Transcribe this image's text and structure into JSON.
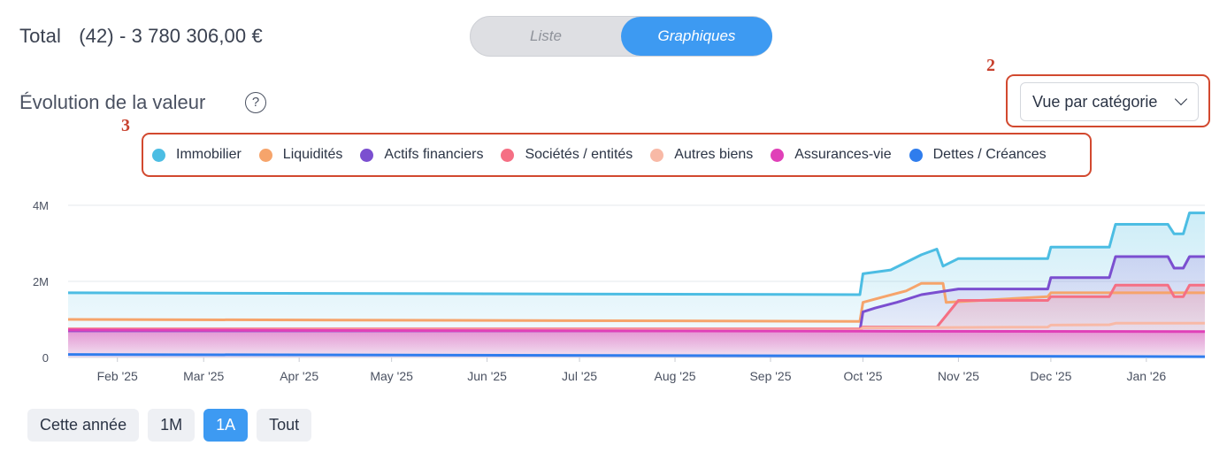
{
  "header": {
    "total_label": "Total",
    "total_value": "(42) - 3 780 306,00 €"
  },
  "view_toggle": {
    "options": [
      "Liste",
      "Graphiques"
    ],
    "selected": "Graphiques"
  },
  "section": {
    "title": "Évolution de la valeur",
    "help_glyph": "?"
  },
  "view_select": {
    "value": "Vue par catégorie"
  },
  "annotations": {
    "label_2": "2",
    "label_3": "3",
    "color": "#d2492f"
  },
  "ranges": {
    "items": [
      "Cette année",
      "1M",
      "1A",
      "Tout"
    ],
    "active": "1A"
  },
  "chart_data": {
    "type": "area",
    "title": "",
    "xlabel": "",
    "ylabel": "",
    "ylim": [
      0,
      4000000
    ],
    "y_ticks": [
      {
        "value": 0,
        "label": "0"
      },
      {
        "value": 2000000,
        "label": "2M"
      },
      {
        "value": 4000000,
        "label": "4M"
      }
    ],
    "x_domain": [
      "2025-01-16",
      "2026-01-20"
    ],
    "x_ticks": [
      {
        "date": "2025-02-01",
        "label": "Feb '25"
      },
      {
        "date": "2025-03-01",
        "label": "Mar '25"
      },
      {
        "date": "2025-04-01",
        "label": "Apr '25"
      },
      {
        "date": "2025-05-01",
        "label": "May '25"
      },
      {
        "date": "2025-06-01",
        "label": "Jun '25"
      },
      {
        "date": "2025-07-01",
        "label": "Jul '25"
      },
      {
        "date": "2025-08-01",
        "label": "Aug '25"
      },
      {
        "date": "2025-09-01",
        "label": "Sep '25"
      },
      {
        "date": "2025-10-01",
        "label": "Oct '25"
      },
      {
        "date": "2025-11-01",
        "label": "Nov '25"
      },
      {
        "date": "2025-12-01",
        "label": "Dec '25"
      },
      {
        "date": "2026-01-01",
        "label": "Jan '26"
      }
    ],
    "grid": true,
    "legend": "top-center",
    "series": [
      {
        "name": "Immobilier",
        "color": "#4cbde3",
        "fill": "#4cbde3",
        "fill_opacity": 0.28,
        "points": [
          [
            "2025-01-16",
            1700000
          ],
          [
            "2025-09-30",
            1650000
          ],
          [
            "2025-10-01",
            2200000
          ],
          [
            "2025-10-10",
            2300000
          ],
          [
            "2025-10-15",
            2500000
          ],
          [
            "2025-10-20",
            2700000
          ],
          [
            "2025-10-25",
            2850000
          ],
          [
            "2025-10-27",
            2400000
          ],
          [
            "2025-11-01",
            2600000
          ],
          [
            "2025-11-30",
            2600000
          ],
          [
            "2025-12-01",
            2900000
          ],
          [
            "2025-12-20",
            2900000
          ],
          [
            "2025-12-22",
            3500000
          ],
          [
            "2026-01-08",
            3500000
          ],
          [
            "2026-01-10",
            3250000
          ],
          [
            "2026-01-13",
            3250000
          ],
          [
            "2026-01-15",
            3800000
          ],
          [
            "2026-01-20",
            3800000
          ]
        ]
      },
      {
        "name": "Liquidités",
        "color": "#f6a46b",
        "fill": "#f6a46b",
        "fill_opacity": 0.0,
        "points": [
          [
            "2025-01-16",
            1000000
          ],
          [
            "2025-09-30",
            950000
          ],
          [
            "2025-10-01",
            1450000
          ],
          [
            "2025-10-08",
            1600000
          ],
          [
            "2025-10-15",
            1750000
          ],
          [
            "2025-10-20",
            1950000
          ],
          [
            "2025-10-27",
            1950000
          ],
          [
            "2025-10-28",
            1450000
          ],
          [
            "2025-11-30",
            1600000
          ],
          [
            "2025-12-01",
            1700000
          ],
          [
            "2026-01-20",
            1700000
          ]
        ]
      },
      {
        "name": "Actifs financiers",
        "color": "#7b4fd0",
        "fill": "#8e6ad9",
        "fill_opacity": 0.22,
        "points": [
          [
            "2025-01-16",
            700000
          ],
          [
            "2025-09-30",
            700000
          ],
          [
            "2025-10-01",
            1200000
          ],
          [
            "2025-10-05",
            1300000
          ],
          [
            "2025-10-12",
            1450000
          ],
          [
            "2025-10-20",
            1650000
          ],
          [
            "2025-11-01",
            1800000
          ],
          [
            "2025-11-30",
            1800000
          ],
          [
            "2025-12-01",
            2100000
          ],
          [
            "2025-12-20",
            2100000
          ],
          [
            "2025-12-22",
            2650000
          ],
          [
            "2026-01-08",
            2650000
          ],
          [
            "2026-01-10",
            2350000
          ],
          [
            "2026-01-13",
            2350000
          ],
          [
            "2026-01-15",
            2650000
          ],
          [
            "2026-01-20",
            2650000
          ]
        ]
      },
      {
        "name": "Sociétés / entités",
        "color": "#f56f84",
        "fill": "#f56f84",
        "fill_opacity": 0.3,
        "points": [
          [
            "2025-01-16",
            750000
          ],
          [
            "2025-09-30",
            750000
          ],
          [
            "2025-10-01",
            800000
          ],
          [
            "2025-10-25",
            800000
          ],
          [
            "2025-10-27",
            1000000
          ],
          [
            "2025-11-01",
            1500000
          ],
          [
            "2025-11-30",
            1500000
          ],
          [
            "2025-12-01",
            1600000
          ],
          [
            "2025-12-20",
            1600000
          ],
          [
            "2025-12-22",
            1900000
          ],
          [
            "2026-01-08",
            1900000
          ],
          [
            "2026-01-10",
            1600000
          ],
          [
            "2026-01-13",
            1600000
          ],
          [
            "2026-01-15",
            1900000
          ],
          [
            "2026-01-20",
            1900000
          ]
        ]
      },
      {
        "name": "Autres biens",
        "color": "#f8b9a6",
        "fill": "#f8b9a6",
        "fill_opacity": 0.0,
        "points": [
          [
            "2025-01-16",
            720000
          ],
          [
            "2025-09-30",
            720000
          ],
          [
            "2025-10-01",
            780000
          ],
          [
            "2025-11-30",
            800000
          ],
          [
            "2025-12-01",
            850000
          ],
          [
            "2025-12-20",
            860000
          ],
          [
            "2025-12-22",
            900000
          ],
          [
            "2026-01-20",
            900000
          ]
        ]
      },
      {
        "name": "Assurances-vie",
        "color": "#e040b8",
        "fill": "#e040b8",
        "fill_opacity": 0.45,
        "points": [
          [
            "2025-01-16",
            720000
          ],
          [
            "2025-09-30",
            690000
          ],
          [
            "2025-10-01",
            690000
          ],
          [
            "2026-01-20",
            680000
          ]
        ]
      },
      {
        "name": "Dettes / Créances",
        "color": "#2f7ded",
        "fill": "#2f7ded",
        "fill_opacity": 0.0,
        "points": [
          [
            "2025-01-16",
            80000
          ],
          [
            "2025-09-30",
            40000
          ],
          [
            "2026-01-20",
            20000
          ]
        ]
      }
    ]
  }
}
